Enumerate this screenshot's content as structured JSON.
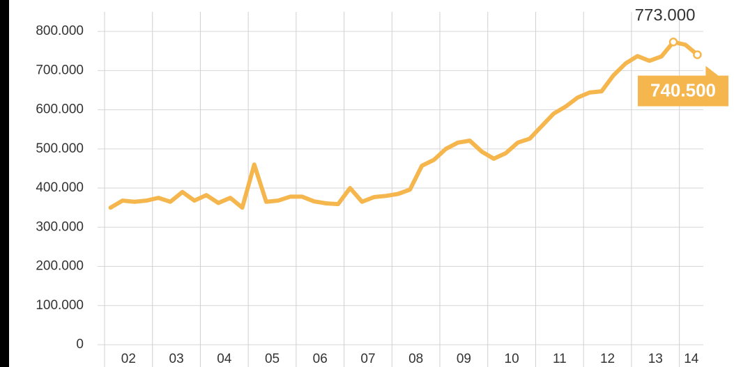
{
  "chart_data": {
    "type": "line",
    "x": [
      2002.125,
      2002.375,
      2002.625,
      2002.875,
      2003.125,
      2003.375,
      2003.625,
      2003.875,
      2004.125,
      2004.375,
      2004.625,
      2004.875,
      2005.125,
      2005.375,
      2005.625,
      2005.875,
      2006.125,
      2006.375,
      2006.625,
      2006.875,
      2007.125,
      2007.375,
      2007.625,
      2007.875,
      2008.125,
      2008.375,
      2008.625,
      2008.875,
      2009.125,
      2009.375,
      2009.625,
      2009.875,
      2010.125,
      2010.375,
      2010.625,
      2010.875,
      2011.125,
      2011.375,
      2011.625,
      2011.875,
      2012.125,
      2012.375,
      2012.625,
      2012.875,
      2013.125,
      2013.375,
      2013.625,
      2013.875,
      2014.125,
      2014.375
    ],
    "series": [
      {
        "color": "#f5b64e",
        "values": [
          350000,
          368000,
          365000,
          368000,
          375000,
          365000,
          390000,
          368000,
          382000,
          362000,
          375000,
          350000,
          460000,
          365000,
          368000,
          378000,
          378000,
          366000,
          361000,
          359000,
          400000,
          365000,
          377000,
          380000,
          385000,
          396000,
          457000,
          472000,
          500000,
          516000,
          521000,
          493000,
          475000,
          489000,
          516000,
          526000,
          558000,
          590000,
          608000,
          631000,
          644000,
          647000,
          688000,
          718000,
          737000,
          725000,
          736000,
          773000,
          766000,
          740500
        ]
      }
    ],
    "xlim": [
      2002,
      2014.5
    ],
    "xticks": [
      {
        "value": 2002,
        "label": "02"
      },
      {
        "value": 2003,
        "label": "03"
      },
      {
        "value": 2004,
        "label": "04"
      },
      {
        "value": 2005,
        "label": "05"
      },
      {
        "value": 2006,
        "label": "06"
      },
      {
        "value": 2007,
        "label": "07"
      },
      {
        "value": 2008,
        "label": "08"
      },
      {
        "value": 2009,
        "label": "09"
      },
      {
        "value": 2010,
        "label": "10"
      },
      {
        "value": 2011,
        "label": "11"
      },
      {
        "value": 2012,
        "label": "12"
      },
      {
        "value": 2013,
        "label": "13"
      },
      {
        "value": 2014,
        "label": "14"
      }
    ],
    "ylim": [
      0,
      850000
    ],
    "yticks": [
      0,
      {
        "value": 100000,
        "label": "100.000"
      },
      {
        "value": 200000,
        "label": "200.000"
      },
      {
        "value": 300000,
        "label": "300.000"
      },
      {
        "value": 400000,
        "label": "400.000"
      },
      {
        "value": 500000,
        "label": "500.000"
      },
      {
        "value": 600000,
        "label": "600.000"
      },
      {
        "value": 700000,
        "label": "700.000"
      },
      {
        "value": 800000,
        "label": "800.000"
      }
    ],
    "grid": true,
    "annotations": [
      {
        "text": "773.000",
        "x": 2013.875,
        "y": 773000
      },
      {
        "text": "740.500",
        "x": 2014.375,
        "y": 740500
      }
    ]
  }
}
